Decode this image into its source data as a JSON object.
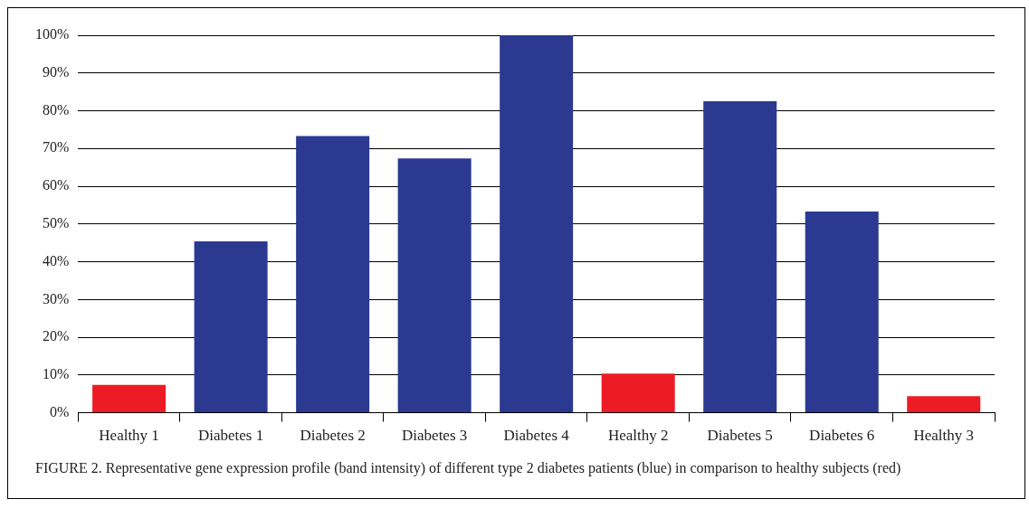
{
  "chart_data": {
    "type": "bar",
    "categories": [
      "Healthy 1",
      "Diabetes 1",
      "Diabetes 2",
      "Diabetes 3",
      "Diabetes 4",
      "Healthy 2",
      "Diabetes 5",
      "Diabetes 6",
      "Healthy 3"
    ],
    "values": [
      7.4,
      45.4,
      73.3,
      67.4,
      100,
      10.4,
      82.5,
      53.3,
      4.4
    ],
    "colors": [
      "#ed1c24",
      "#2b3990",
      "#2b3990",
      "#2b3990",
      "#2b3990",
      "#ed1c24",
      "#2b3990",
      "#2b3990",
      "#ed1c24"
    ],
    "ylim": [
      0,
      100
    ],
    "yticks": [
      {
        "value": 0,
        "label": "0%"
      },
      {
        "value": 10,
        "label": "10%"
      },
      {
        "value": 20,
        "label": "20%"
      },
      {
        "value": 30,
        "label": "30%"
      },
      {
        "value": 40,
        "label": "40%"
      },
      {
        "value": 50,
        "label": "50%"
      },
      {
        "value": 60,
        "label": "60%"
      },
      {
        "value": 70,
        "label": "70%"
      },
      {
        "value": 80,
        "label": "80%"
      },
      {
        "value": 90,
        "label": "90%"
      },
      {
        "value": 100,
        "label": "100%"
      }
    ],
    "grid": "y",
    "annotations": [
      "FIGURE 2.  Representative gene expression profile (band intensity) of different type 2 diabetes patients (blue) in comparison to healthy subjects (red)"
    ]
  }
}
